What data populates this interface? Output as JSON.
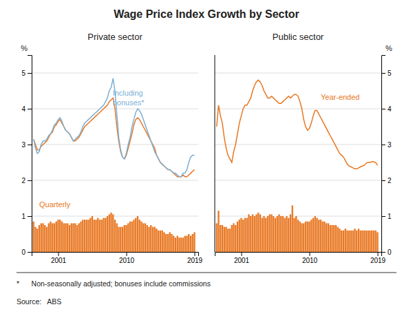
{
  "title": "Wage Price Index Growth by Sector",
  "annotations": [
    "*      Non-seasonally adjusted; bonuses include commissions",
    "Source:   ABS"
  ],
  "chart_data": [
    {
      "type": "bar",
      "title": "Private sector",
      "ylabel": "%",
      "xlim": [
        1997.5,
        2019.5
      ],
      "xticks": [
        2001,
        2010,
        2019
      ],
      "ylim": [
        0,
        5.5
      ],
      "yticks": [
        0,
        1,
        2,
        3,
        4,
        5
      ],
      "grid": true,
      "x": [
        1997.75,
        1998.0,
        1998.25,
        1998.5,
        1998.75,
        1999.0,
        1999.25,
        1999.5,
        1999.75,
        2000.0,
        2000.25,
        2000.5,
        2000.75,
        2001.0,
        2001.25,
        2001.5,
        2001.75,
        2002.0,
        2002.25,
        2002.5,
        2002.75,
        2003.0,
        2003.25,
        2003.5,
        2003.75,
        2004.0,
        2004.25,
        2004.5,
        2004.75,
        2005.0,
        2005.25,
        2005.5,
        2005.75,
        2006.0,
        2006.25,
        2006.5,
        2006.75,
        2007.0,
        2007.25,
        2007.5,
        2007.75,
        2008.0,
        2008.25,
        2008.5,
        2008.75,
        2009.0,
        2009.25,
        2009.5,
        2009.75,
        2010.0,
        2010.25,
        2010.5,
        2010.75,
        2011.0,
        2011.25,
        2011.5,
        2011.75,
        2012.0,
        2012.25,
        2012.5,
        2012.75,
        2013.0,
        2013.25,
        2013.5,
        2013.75,
        2014.0,
        2014.25,
        2014.5,
        2014.75,
        2015.0,
        2015.25,
        2015.5,
        2015.75,
        2016.0,
        2016.25,
        2016.5,
        2016.75,
        2017.0,
        2017.25,
        2017.5,
        2017.75,
        2018.0,
        2018.25,
        2018.5,
        2018.75,
        2019.0
      ],
      "series": [
        {
          "type": "bar",
          "color": "#E87722",
          "values": [
            0.85,
            0.7,
            0.65,
            0.75,
            0.8,
            0.8,
            0.75,
            0.7,
            0.8,
            0.85,
            0.8,
            0.8,
            0.85,
            0.9,
            0.9,
            0.85,
            0.8,
            0.8,
            0.8,
            0.75,
            0.8,
            0.8,
            0.8,
            0.75,
            0.8,
            0.85,
            0.9,
            0.9,
            0.9,
            0.9,
            0.95,
            1.0,
            0.9,
            0.9,
            0.95,
            0.9,
            0.9,
            0.95,
            0.95,
            1.0,
            1.05,
            1.1,
            1.05,
            0.9,
            0.8,
            0.7,
            0.7,
            0.7,
            0.75,
            0.75,
            0.8,
            0.85,
            0.85,
            0.9,
            0.95,
            1.0,
            0.9,
            0.85,
            0.8,
            0.8,
            0.75,
            0.7,
            0.75,
            0.7,
            0.7,
            0.65,
            0.6,
            0.6,
            0.6,
            0.55,
            0.5,
            0.5,
            0.55,
            0.5,
            0.45,
            0.4,
            0.45,
            0.4,
            0.4,
            0.4,
            0.45,
            0.45,
            0.5,
            0.45,
            0.5,
            0.55
          ]
        },
        {
          "type": "line",
          "color": "#E87722",
          "values": [
            3.15,
            3.0,
            2.85,
            2.85,
            2.95,
            3.0,
            3.05,
            3.1,
            3.2,
            3.3,
            3.35,
            3.5,
            3.55,
            3.65,
            3.7,
            3.6,
            3.5,
            3.4,
            3.35,
            3.3,
            3.2,
            3.1,
            3.1,
            3.15,
            3.2,
            3.3,
            3.4,
            3.5,
            3.55,
            3.6,
            3.65,
            3.7,
            3.75,
            3.8,
            3.85,
            3.9,
            3.95,
            4.0,
            4.05,
            4.1,
            4.2,
            4.25,
            4.3,
            4.0,
            3.5,
            3.1,
            2.8,
            2.65,
            2.6,
            2.7,
            2.9,
            3.1,
            3.3,
            3.55,
            3.7,
            3.75,
            3.7,
            3.6,
            3.5,
            3.4,
            3.3,
            3.2,
            3.1,
            3.0,
            2.9,
            2.7,
            2.6,
            2.5,
            2.45,
            2.4,
            2.35,
            2.3,
            2.3,
            2.25,
            2.2,
            2.15,
            2.1,
            2.1,
            2.1,
            2.15,
            2.1,
            2.1,
            2.15,
            2.2,
            2.25,
            2.3
          ]
        },
        {
          "type": "line",
          "color": "#7BAFD4",
          "values": [
            3.15,
            2.9,
            2.75,
            2.8,
            3.0,
            3.1,
            3.1,
            3.15,
            3.25,
            3.3,
            3.4,
            3.55,
            3.6,
            3.7,
            3.75,
            3.65,
            3.5,
            3.4,
            3.35,
            3.3,
            3.2,
            3.1,
            3.15,
            3.2,
            3.25,
            3.35,
            3.5,
            3.6,
            3.65,
            3.7,
            3.75,
            3.8,
            3.85,
            3.9,
            3.95,
            4.0,
            4.05,
            4.1,
            4.2,
            4.3,
            4.5,
            4.6,
            4.85,
            4.5,
            3.85,
            3.2,
            2.85,
            2.65,
            2.6,
            2.75,
            3.0,
            3.2,
            3.5,
            3.7,
            3.9,
            4.0,
            3.95,
            3.85,
            3.7,
            3.55,
            3.4,
            3.25,
            3.1,
            2.95,
            2.8,
            2.7,
            2.6,
            2.5,
            2.45,
            2.4,
            2.35,
            2.3,
            2.3,
            2.25,
            2.2,
            2.2,
            2.15,
            2.1,
            2.1,
            2.2,
            2.2,
            2.3,
            2.5,
            2.65,
            2.7,
            2.7
          ]
        }
      ],
      "annotations": [
        {
          "text": "Including\nbonuses*",
          "x": 2008.2,
          "y": 4.55,
          "color": "#7BAFD4"
        },
        {
          "text": "Quarterly",
          "x": 1998.5,
          "y": 1.45,
          "color": "#E87722"
        }
      ]
    },
    {
      "type": "bar",
      "title": "Public sector",
      "ylabel": "%",
      "xlim": [
        1997.5,
        2019.5
      ],
      "xticks": [
        2001,
        2010,
        2019
      ],
      "ylim": [
        0,
        5.5
      ],
      "yticks": [
        0,
        1,
        2,
        3,
        4,
        5
      ],
      "grid": true,
      "x": [
        1997.75,
        1998.0,
        1998.25,
        1998.5,
        1998.75,
        1999.0,
        1999.25,
        1999.5,
        1999.75,
        2000.0,
        2000.25,
        2000.5,
        2000.75,
        2001.0,
        2001.25,
        2001.5,
        2001.75,
        2002.0,
        2002.25,
        2002.5,
        2002.75,
        2003.0,
        2003.25,
        2003.5,
        2003.75,
        2004.0,
        2004.25,
        2004.5,
        2004.75,
        2005.0,
        2005.25,
        2005.5,
        2005.75,
        2006.0,
        2006.25,
        2006.5,
        2006.75,
        2007.0,
        2007.25,
        2007.5,
        2007.75,
        2008.0,
        2008.25,
        2008.5,
        2008.75,
        2009.0,
        2009.25,
        2009.5,
        2009.75,
        2010.0,
        2010.25,
        2010.5,
        2010.75,
        2011.0,
        2011.25,
        2011.5,
        2011.75,
        2012.0,
        2012.25,
        2012.5,
        2012.75,
        2013.0,
        2013.25,
        2013.5,
        2013.75,
        2014.0,
        2014.25,
        2014.5,
        2014.75,
        2015.0,
        2015.25,
        2015.5,
        2015.75,
        2016.0,
        2016.25,
        2016.5,
        2016.75,
        2017.0,
        2017.25,
        2017.5,
        2017.75,
        2018.0,
        2018.25,
        2018.5,
        2018.75,
        2019.0
      ],
      "series": [
        {
          "type": "bar",
          "color": "#E87722",
          "values": [
            0.8,
            1.15,
            0.75,
            0.75,
            0.7,
            0.7,
            0.65,
            0.65,
            0.75,
            0.8,
            0.75,
            0.85,
            0.9,
            0.95,
            0.9,
            0.95,
            0.95,
            1.05,
            1.0,
            1.05,
            1.0,
            1.05,
            1.1,
            1.05,
            0.95,
            1.0,
            0.95,
            1.0,
            1.05,
            1.05,
            1.0,
            0.95,
            1.0,
            1.05,
            1.0,
            1.0,
            0.95,
            1.0,
            0.95,
            1.05,
            1.3,
            0.95,
            1.0,
            0.9,
            0.85,
            0.8,
            0.8,
            0.85,
            0.85,
            0.85,
            0.9,
            0.95,
            1.0,
            0.95,
            0.9,
            0.9,
            0.85,
            0.85,
            0.8,
            0.8,
            0.75,
            0.75,
            0.75,
            0.75,
            0.7,
            0.65,
            0.6,
            0.6,
            0.65,
            0.6,
            0.6,
            0.6,
            0.6,
            0.65,
            0.6,
            0.65,
            0.6,
            0.6,
            0.6,
            0.6,
            0.6,
            0.6,
            0.6,
            0.6,
            0.6,
            0.55
          ]
        },
        {
          "type": "line",
          "color": "#E87722",
          "values": [
            3.5,
            4.1,
            3.8,
            3.6,
            3.2,
            2.9,
            2.7,
            2.6,
            2.5,
            2.8,
            3.0,
            3.3,
            3.6,
            3.8,
            4.0,
            4.1,
            4.1,
            4.2,
            4.3,
            4.5,
            4.65,
            4.75,
            4.8,
            4.75,
            4.65,
            4.5,
            4.4,
            4.3,
            4.3,
            4.35,
            4.3,
            4.25,
            4.2,
            4.15,
            4.15,
            4.2,
            4.25,
            4.3,
            4.35,
            4.3,
            4.35,
            4.4,
            4.4,
            4.35,
            4.2,
            4.0,
            3.7,
            3.5,
            3.4,
            3.45,
            3.6,
            3.8,
            3.95,
            3.95,
            3.85,
            3.75,
            3.65,
            3.55,
            3.45,
            3.35,
            3.25,
            3.15,
            3.05,
            2.95,
            2.85,
            2.75,
            2.7,
            2.65,
            2.55,
            2.45,
            2.4,
            2.38,
            2.35,
            2.32,
            2.32,
            2.35,
            2.38,
            2.4,
            2.42,
            2.48,
            2.5,
            2.5,
            2.52,
            2.52,
            2.5,
            2.42
          ]
        }
      ],
      "annotations": [
        {
          "text": "Year-ended",
          "x": 2011.5,
          "y": 4.45,
          "color": "#E87722"
        }
      ]
    }
  ]
}
